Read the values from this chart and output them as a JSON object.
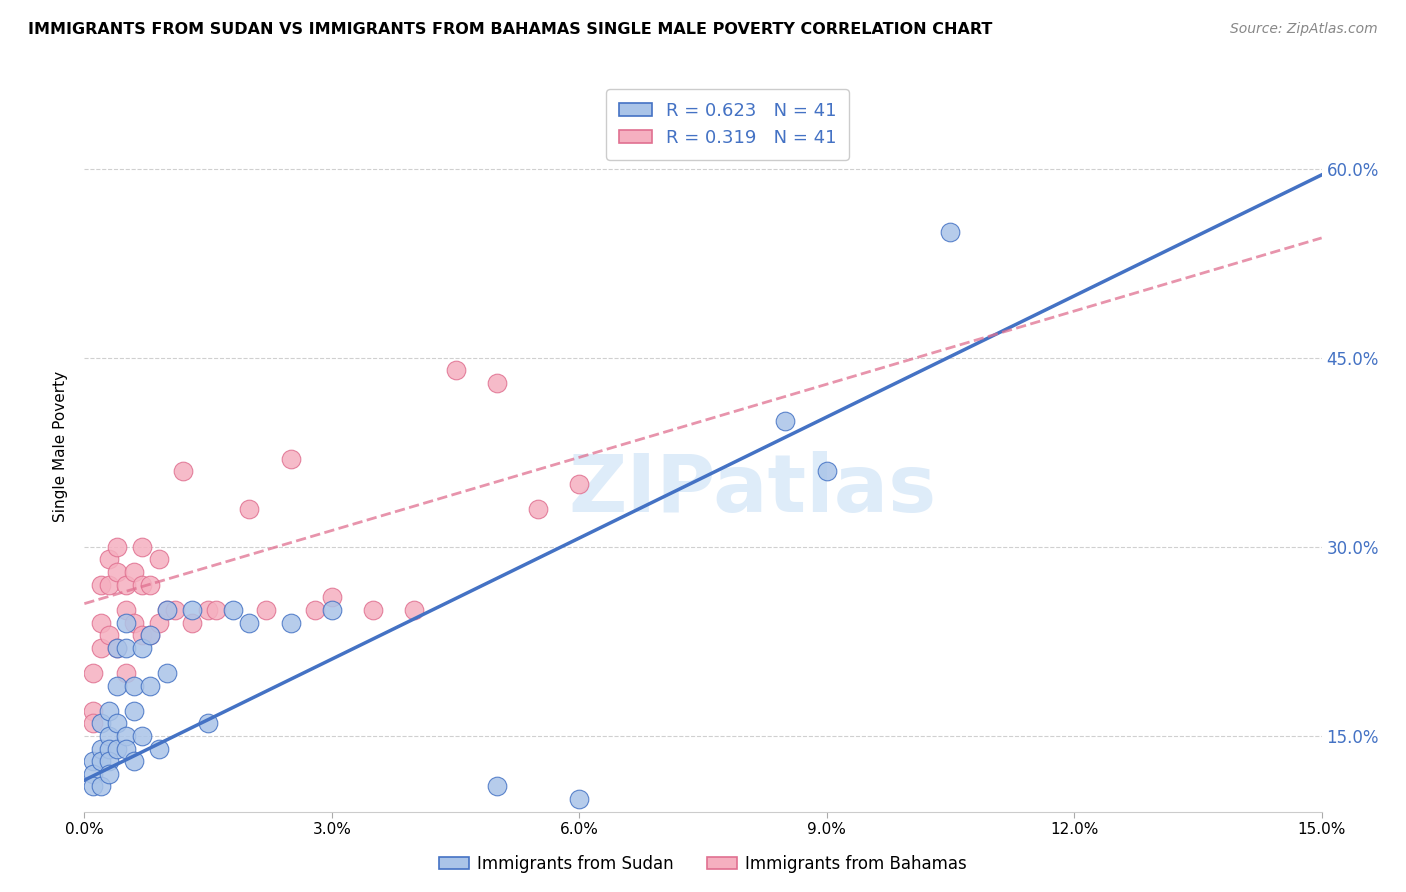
{
  "title": "IMMIGRANTS FROM SUDAN VS IMMIGRANTS FROM BAHAMAS SINGLE MALE POVERTY CORRELATION CHART",
  "source": "Source: ZipAtlas.com",
  "ylabel": "Single Male Poverty",
  "xlim": [
    0.0,
    0.15
  ],
  "ylim": [
    0.09,
    0.67
  ],
  "y_tick_vals": [
    0.15,
    0.3,
    0.45,
    0.6
  ],
  "x_tick_vals": [
    0.0,
    0.03,
    0.06,
    0.09,
    0.12,
    0.15
  ],
  "legend_r1": "0.623",
  "legend_n1": "41",
  "legend_r2": "0.319",
  "legend_n2": "41",
  "color_sudan": "#aac4e8",
  "color_bahamas": "#f5b0c0",
  "color_sudan_line": "#4472c4",
  "color_bahamas_line": "#e07090",
  "watermark_text": "ZIPatlas",
  "watermark_color": "#d0e4f7",
  "sudan_x": [
    0.001,
    0.001,
    0.001,
    0.002,
    0.002,
    0.002,
    0.002,
    0.003,
    0.003,
    0.003,
    0.003,
    0.003,
    0.004,
    0.004,
    0.004,
    0.004,
    0.005,
    0.005,
    0.005,
    0.005,
    0.006,
    0.006,
    0.006,
    0.007,
    0.007,
    0.008,
    0.008,
    0.009,
    0.01,
    0.01,
    0.013,
    0.015,
    0.018,
    0.02,
    0.025,
    0.03,
    0.05,
    0.06,
    0.085,
    0.09,
    0.105
  ],
  "sudan_y": [
    0.13,
    0.12,
    0.11,
    0.16,
    0.14,
    0.13,
    0.11,
    0.17,
    0.15,
    0.14,
    0.13,
    0.12,
    0.22,
    0.19,
    0.16,
    0.14,
    0.24,
    0.22,
    0.15,
    0.14,
    0.19,
    0.17,
    0.13,
    0.22,
    0.15,
    0.23,
    0.19,
    0.14,
    0.25,
    0.2,
    0.25,
    0.16,
    0.25,
    0.24,
    0.24,
    0.25,
    0.11,
    0.1,
    0.4,
    0.36,
    0.55
  ],
  "bahamas_x": [
    0.001,
    0.001,
    0.001,
    0.002,
    0.002,
    0.002,
    0.003,
    0.003,
    0.003,
    0.004,
    0.004,
    0.004,
    0.005,
    0.005,
    0.005,
    0.006,
    0.006,
    0.007,
    0.007,
    0.007,
    0.008,
    0.008,
    0.009,
    0.009,
    0.01,
    0.011,
    0.012,
    0.013,
    0.015,
    0.016,
    0.02,
    0.022,
    0.025,
    0.028,
    0.03,
    0.035,
    0.04,
    0.045,
    0.05,
    0.055,
    0.06
  ],
  "bahamas_y": [
    0.2,
    0.17,
    0.16,
    0.27,
    0.24,
    0.22,
    0.29,
    0.27,
    0.23,
    0.3,
    0.28,
    0.22,
    0.27,
    0.25,
    0.2,
    0.28,
    0.24,
    0.3,
    0.27,
    0.23,
    0.27,
    0.23,
    0.29,
    0.24,
    0.25,
    0.25,
    0.36,
    0.24,
    0.25,
    0.25,
    0.33,
    0.25,
    0.37,
    0.25,
    0.26,
    0.25,
    0.25,
    0.44,
    0.43,
    0.33,
    0.35
  ],
  "sudan_line_x0": 0.0,
  "sudan_line_y0": 0.115,
  "sudan_line_x1": 0.15,
  "sudan_line_y1": 0.595,
  "bahamas_line_x0": 0.0,
  "bahamas_line_y0": 0.255,
  "bahamas_line_x1": 0.15,
  "bahamas_line_y1": 0.545
}
